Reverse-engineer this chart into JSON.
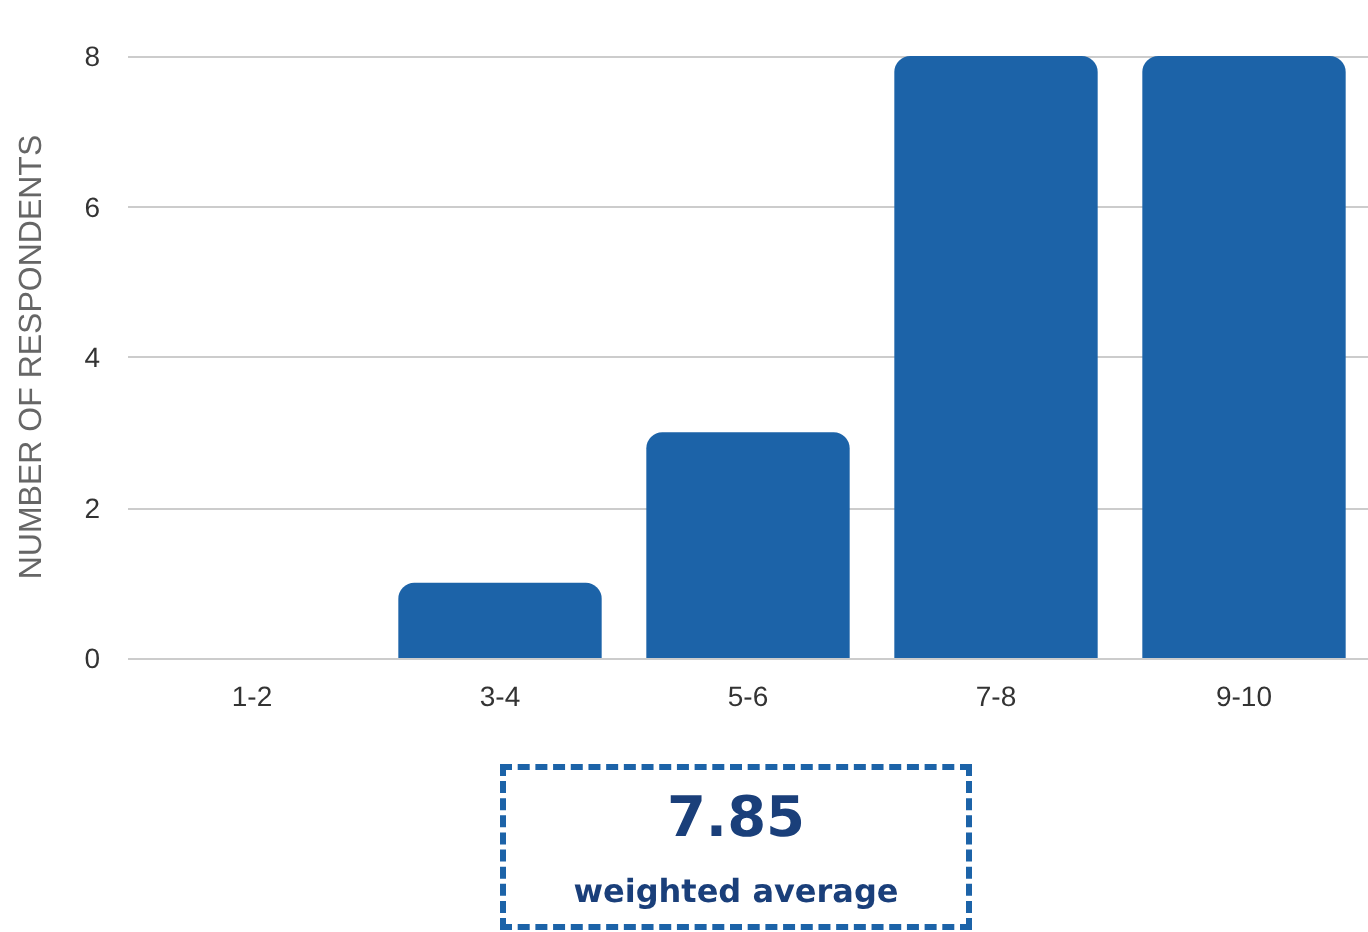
{
  "chart_data": {
    "type": "bar",
    "ylabel": "NUMBER OF RESPONDENTS",
    "categories": [
      "1-2",
      "3-4",
      "5-6",
      "7-8",
      "9-10"
    ],
    "values": [
      0,
      1,
      3,
      8,
      8
    ],
    "color": "#1c63a8",
    "ylim": [
      0,
      8
    ],
    "yticks": [
      0,
      2,
      4,
      6,
      8
    ],
    "grid": "y",
    "annotations": [
      "7.85",
      "weighted average"
    ]
  }
}
